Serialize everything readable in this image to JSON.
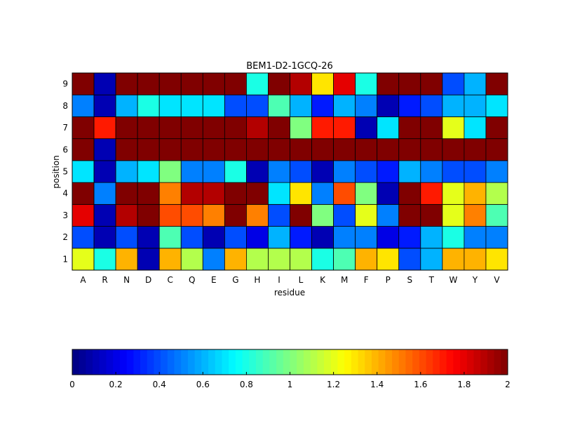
{
  "chart_data": {
    "type": "heatmap",
    "title": "BEM1-D2-1GCQ-26",
    "xlabel": "residue",
    "ylabel": "position",
    "x_categories": [
      "A",
      "R",
      "N",
      "D",
      "C",
      "Q",
      "E",
      "G",
      "H",
      "I",
      "L",
      "K",
      "M",
      "F",
      "P",
      "S",
      "T",
      "W",
      "Y",
      "V"
    ],
    "y_categories": [
      "1",
      "2",
      "3",
      "4",
      "5",
      "6",
      "7",
      "8",
      "9"
    ],
    "values": [
      [
        1.2,
        0.8,
        1.4,
        0.1,
        1.4,
        1.1,
        0.5,
        1.4,
        1.1,
        1.1,
        1.1,
        0.8,
        0.9,
        1.4,
        1.3,
        0.4,
        0.6,
        1.4,
        1.4,
        1.3
      ],
      [
        0.4,
        0.1,
        0.4,
        0.1,
        0.9,
        0.4,
        0.1,
        0.4,
        0.2,
        0.6,
        0.3,
        0.1,
        0.5,
        0.5,
        0.2,
        0.3,
        0.6,
        0.8,
        0.5,
        0.5
      ],
      [
        1.8,
        0.1,
        1.9,
        2.0,
        1.6,
        1.6,
        1.5,
        2.0,
        1.5,
        0.4,
        2.0,
        1.0,
        0.4,
        1.2,
        0.5,
        2.0,
        2.0,
        1.2,
        1.5,
        0.9
      ],
      [
        2.0,
        0.5,
        2.0,
        2.0,
        1.5,
        1.9,
        1.9,
        2.0,
        2.0,
        0.7,
        1.3,
        0.5,
        1.6,
        1.0,
        0.1,
        2.0,
        1.7,
        1.2,
        1.4,
        1.1
      ],
      [
        0.7,
        0.1,
        0.6,
        0.7,
        1.0,
        0.5,
        0.5,
        0.8,
        0.1,
        0.5,
        0.4,
        0.1,
        0.5,
        0.4,
        0.3,
        0.6,
        0.5,
        0.4,
        0.4,
        0.5
      ],
      [
        2.0,
        0.1,
        2.0,
        2.0,
        2.0,
        2.0,
        2.0,
        2.0,
        2.0,
        2.0,
        2.0,
        2.0,
        2.0,
        2.0,
        2.0,
        2.0,
        2.0,
        2.0,
        2.0,
        2.0
      ],
      [
        2.0,
        1.7,
        2.0,
        2.0,
        2.0,
        2.0,
        2.0,
        2.0,
        1.9,
        2.0,
        1.0,
        1.7,
        1.7,
        0.1,
        0.7,
        2.0,
        2.0,
        1.2,
        0.7,
        2.0
      ],
      [
        0.5,
        0.1,
        0.6,
        0.8,
        0.7,
        0.7,
        0.7,
        0.4,
        0.4,
        0.9,
        0.6,
        0.3,
        0.6,
        0.5,
        0.1,
        0.3,
        0.4,
        0.6,
        0.6,
        0.7
      ],
      [
        2.0,
        0.1,
        2.0,
        2.0,
        2.0,
        2.0,
        2.0,
        2.0,
        0.8,
        2.0,
        1.9,
        1.3,
        1.8,
        0.8,
        2.0,
        2.0,
        2.0,
        0.4,
        0.6,
        2.0
      ]
    ],
    "clim": [
      0,
      2
    ],
    "colormap": "jet",
    "colorbar": {
      "placement": "bottom",
      "ticks": [
        0,
        0.2,
        0.4,
        0.6,
        0.8,
        1,
        1.2,
        1.4,
        1.6,
        1.8,
        2
      ],
      "tick_labels": [
        "0",
        "0.2",
        "0.4",
        "0.6",
        "0.8",
        "1",
        "1.2",
        "1.4",
        "1.6",
        "1.8",
        "2"
      ]
    },
    "grid": false
  }
}
